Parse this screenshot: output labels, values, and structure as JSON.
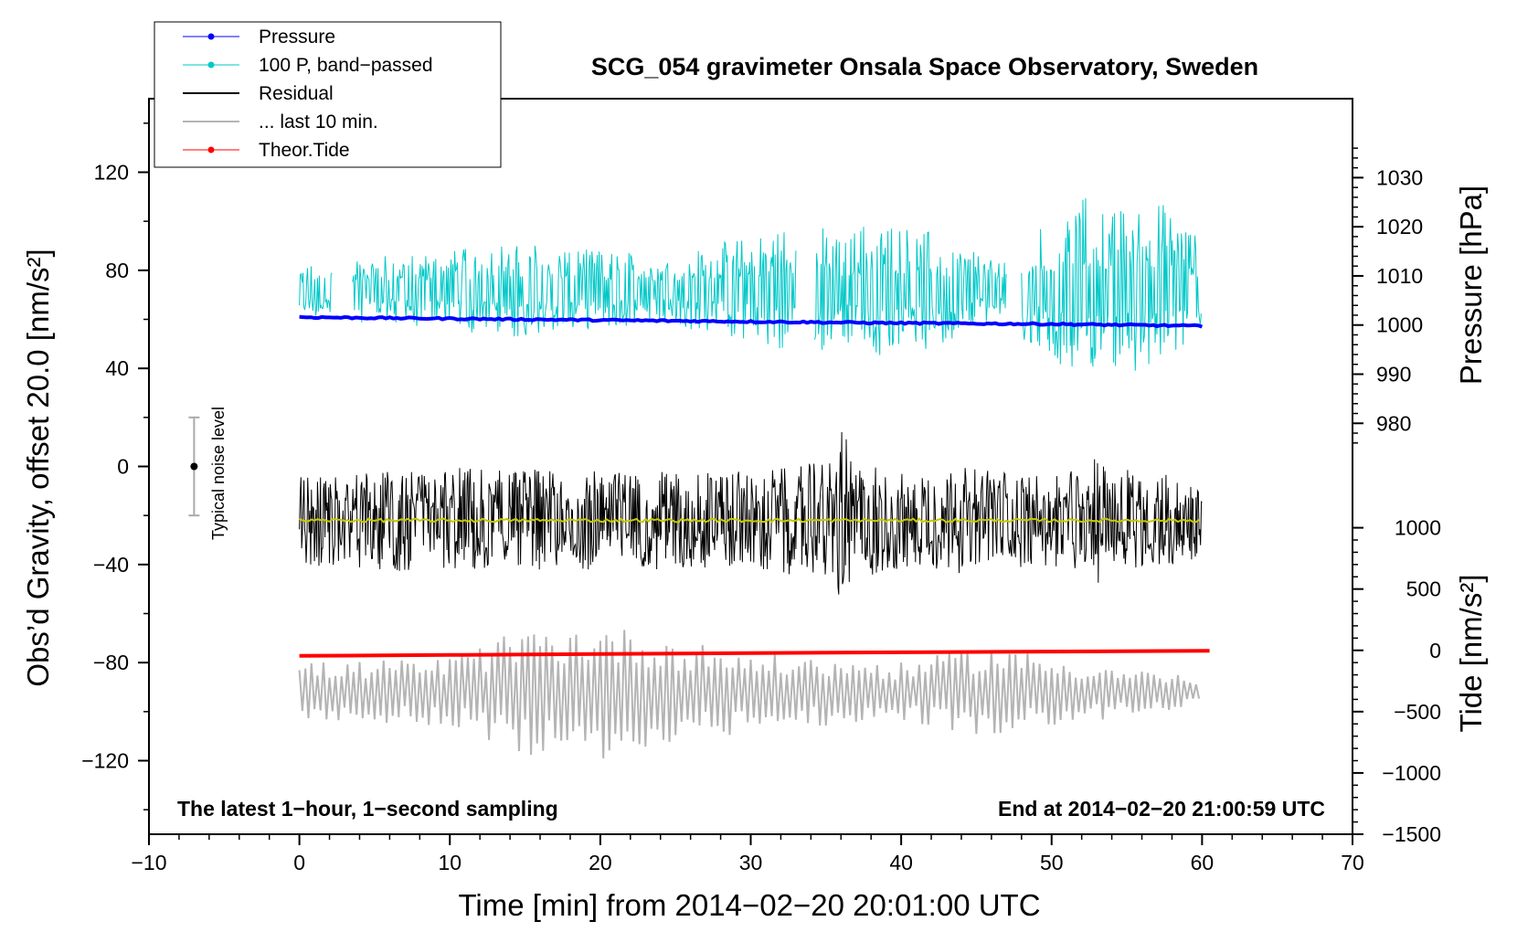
{
  "chart_data": {
    "type": "line",
    "title": "SCG_054 gravimeter Onsala Space Observatory, Sweden",
    "xlabel": "Time [min] from 2014−02−20 20:01:00 UTC",
    "ylabel_left": "Obs’d Gravity, offset 20.0 [nm/s²]",
    "ylabel_right_top": "Pressure [hPa]",
    "ylabel_right_bottom": "Tide [nm/s²]",
    "xlim": [
      -10,
      70
    ],
    "ylim_left": [
      -150,
      150
    ],
    "x_ticks": [
      {
        "v": -10,
        "label": "−10"
      },
      {
        "v": 0,
        "label": "0"
      },
      {
        "v": 10,
        "label": "10"
      },
      {
        "v": 20,
        "label": "20"
      },
      {
        "v": 30,
        "label": "30"
      },
      {
        "v": 40,
        "label": "40"
      },
      {
        "v": 50,
        "label": "50"
      },
      {
        "v": 60,
        "label": "60"
      },
      {
        "v": 70,
        "label": "70"
      }
    ],
    "y_ticks_left": [
      {
        "v": 120,
        "label": "120"
      },
      {
        "v": 80,
        "label": "80"
      },
      {
        "v": 40,
        "label": "40"
      },
      {
        "v": 0,
        "label": "0"
      },
      {
        "v": -40,
        "label": "−40"
      },
      {
        "v": -80,
        "label": "−80"
      },
      {
        "v": -120,
        "label": "−120"
      }
    ],
    "y_ticks_pressure": [
      {
        "v": 1030,
        "label": "1030"
      },
      {
        "v": 1020,
        "label": "1020"
      },
      {
        "v": 1010,
        "label": "1010"
      },
      {
        "v": 1000,
        "label": "1000"
      },
      {
        "v": 990,
        "label": "990"
      },
      {
        "v": 980,
        "label": "980"
      }
    ],
    "y_ticks_tide": [
      {
        "v": 1000,
        "label": "1000"
      },
      {
        "v": 500,
        "label": "500"
      },
      {
        "v": 0,
        "label": "0"
      },
      {
        "v": -500,
        "label": "−500"
      },
      {
        "v": -1000,
        "label": "−1000"
      },
      {
        "v": -1500,
        "label": "−1500"
      }
    ],
    "pressure_axis_map": {
      "pressure": [
        980,
        1030
      ],
      "gravity": [
        17.6,
        117.8
      ]
    },
    "tide_axis_map": {
      "tide": [
        -1500,
        1000
      ],
      "gravity": [
        -150,
        -25
      ]
    },
    "legend_position": "top-left",
    "legend": [
      {
        "label": "Pressure",
        "color": "#0000ff",
        "marker": true
      },
      {
        "label": "100 P, band−passed",
        "color": "#00c8c8",
        "marker": true
      },
      {
        "label": "Residual",
        "color": "#000000",
        "marker": false
      },
      {
        "label": "... last 10 min.",
        "color": "#b4b4b4",
        "marker": false
      },
      {
        "label": "Theor.Tide",
        "color": "#ff0000",
        "marker": true
      }
    ],
    "annotations": {
      "bottom_left": "The latest 1−hour, 1−second sampling",
      "bottom_right": "End at 2014−02−20 21:00:59 UTC",
      "noise_label": "Typical noise level"
    },
    "noise_bar": {
      "x": -7,
      "center": 0,
      "low": -20,
      "high": 20
    },
    "series": [
      {
        "name": "Pressure",
        "color": "#0000ff",
        "axis": "pressure_hPa",
        "x": [
          0,
          10,
          20,
          30,
          40,
          50,
          60
        ],
        "y": [
          1001.6,
          1001.3,
          1001.0,
          1000.7,
          1000.4,
          1000.2,
          999.8
        ]
      },
      {
        "name": "100 P, band−passed",
        "color": "#00c8c8",
        "axis": "gravity",
        "baseline": 72,
        "x_start": 0,
        "x_end": 60,
        "gaps": [
          [
            2.2,
            3.5
          ],
          [
            33.0,
            34.2
          ],
          [
            47.0,
            48.0
          ]
        ],
        "envelope_x": [
          0,
          5,
          10,
          14,
          20,
          25,
          30,
          34,
          36,
          38,
          42,
          46,
          49,
          52,
          54,
          57,
          60
        ],
        "envelope_amp": [
          10,
          14,
          16,
          20,
          16,
          15,
          22,
          30,
          20,
          30,
          24,
          12,
          24,
          40,
          32,
          38,
          20
        ]
      },
      {
        "name": "Residual",
        "color": "#000000",
        "axis": "gravity",
        "baseline": -22,
        "x_start": 0,
        "x_end": 60,
        "envelope_x": [
          0,
          5,
          10,
          20,
          30,
          35,
          36.2,
          37,
          40,
          45,
          50,
          53,
          55,
          60
        ],
        "envelope_amp": [
          18,
          20,
          22,
          20,
          20,
          24,
          38,
          24,
          20,
          22,
          18,
          26,
          22,
          16
        ]
      },
      {
        "name": "Residual (smoothed)",
        "color": "#c8c800",
        "axis": "gravity",
        "x": [
          0,
          60
        ],
        "y": [
          -22,
          -22
        ]
      },
      {
        "name": "... last 10 min.",
        "color": "#b4b4b4",
        "axis": "gravity",
        "baseline": -92,
        "x_start": 0,
        "x_end": 60,
        "envelope_x": [
          0,
          10,
          15,
          20,
          25,
          30,
          40,
          46,
          50,
          55,
          60
        ],
        "envelope_amp": [
          12,
          14,
          26,
          28,
          22,
          16,
          12,
          20,
          14,
          10,
          6
        ]
      },
      {
        "name": "Theor.Tide",
        "color": "#ff0000",
        "axis": "tide_nm_s2",
        "x": [
          0,
          10,
          20,
          30,
          40,
          50,
          60.5
        ],
        "y": [
          -45,
          -38,
          -30,
          -23,
          -16,
          -10,
          -3
        ]
      }
    ]
  }
}
